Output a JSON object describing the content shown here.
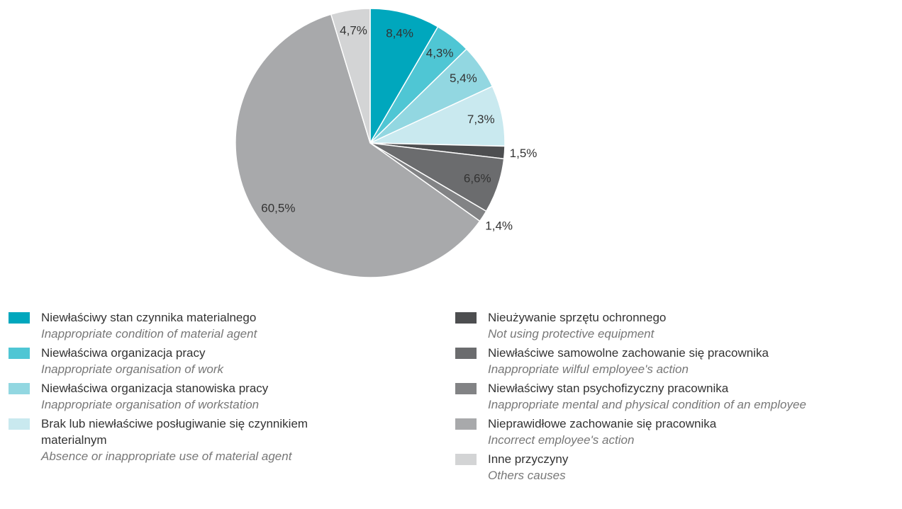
{
  "chart_data": {
    "type": "pie",
    "categories": [
      "Niewłaściwy stan czynnika materialnego",
      "Niewłaściwa organizacja pracy",
      "Niewłaściwa organizacja stanowiska pracy",
      "Brak lub niewłaściwe posługiwanie się czynnikiem materialnym",
      "Nieużywanie sprzętu ochronnego",
      "Niewłaściwe samowolne zachowanie się pracownika",
      "Niewłaściwy stan psychofizyczny pracownika",
      "Nieprawidłowe zachowanie się pracownika",
      "Inne przyczyny"
    ],
    "categories_en": [
      "Inappropriate condition of material agent",
      "Inappropriate organisation of work",
      "Inappropriate organisation of workstation",
      "Absence or inappropriate use of material agent",
      "Not using protective equipment",
      "Inappropriate wilful employee's action",
      "Inappropriate mental and physical condition of an employee",
      "Incorrect employee's action",
      "Others causes"
    ],
    "values": [
      8.4,
      4.3,
      5.4,
      7.3,
      1.5,
      6.6,
      1.4,
      60.5,
      4.7
    ],
    "value_labels": [
      "8,4%",
      "4,3%",
      "5,4%",
      "7,3%",
      "1,5%",
      "6,6%",
      "1,4%",
      "60,5%",
      "4,7%"
    ],
    "colors": [
      "#00a7bd",
      "#4fc6d4",
      "#92d7e1",
      "#c9e9ef",
      "#4d4e50",
      "#6b6c6e",
      "#828385",
      "#a8a9ab",
      "#d3d4d5"
    ]
  }
}
